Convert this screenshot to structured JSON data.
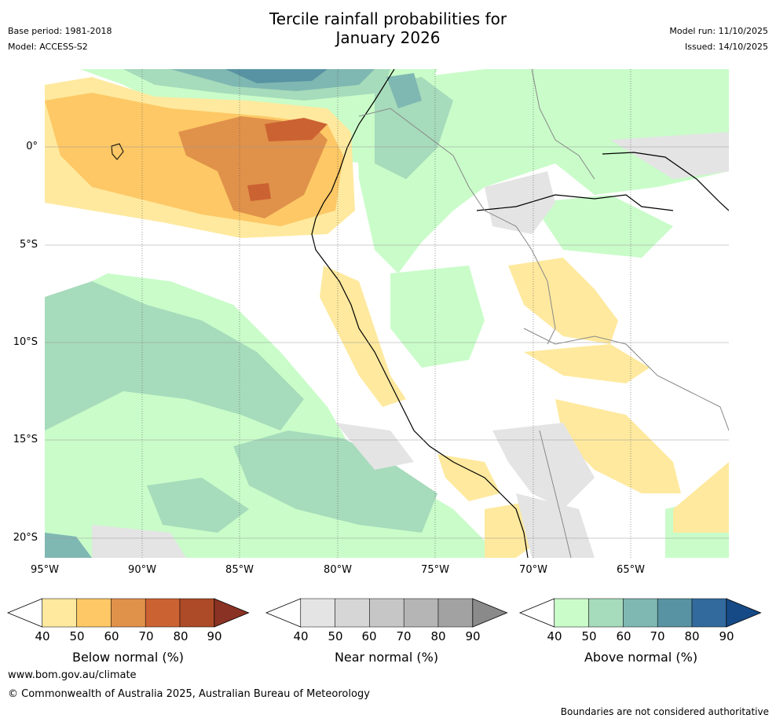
{
  "header": {
    "title_line1": "Tercile rainfall probabilities for",
    "title_line2": "January 2026",
    "base_period": "Base period: 1981-2018",
    "model": "Model: ACCESS-S2",
    "model_run": "Model run: 11/10/2025",
    "issued": "Issued: 14/10/2025"
  },
  "map": {
    "lat_labels": [
      "0°",
      "5°S",
      "10°S",
      "15°S",
      "20°S"
    ],
    "lon_labels": [
      "95°W",
      "90°W",
      "85°W",
      "80°W",
      "75°W",
      "70°W",
      "65°W"
    ]
  },
  "colorbars": [
    {
      "name": "below",
      "label": "Below normal (%)",
      "ticks": [
        "40",
        "50",
        "60",
        "70",
        "80",
        "90"
      ],
      "colors": [
        "#fee99e",
        "#fdc865",
        "#e0914a",
        "#cb6232",
        "#ad4a28",
        "#8a3223"
      ]
    },
    {
      "name": "near",
      "label": "Near normal (%)",
      "ticks": [
        "40",
        "50",
        "60",
        "70",
        "80",
        "90"
      ],
      "colors": [
        "#e4e4e4",
        "#d6d6d6",
        "#c6c6c6",
        "#b5b5b5",
        "#a2a2a2",
        "#8a8a8a"
      ]
    },
    {
      "name": "above",
      "label": "Above normal (%)",
      "ticks": [
        "40",
        "50",
        "60",
        "70",
        "80",
        "90"
      ],
      "colors": [
        "#c9fcc9",
        "#a6dbbb",
        "#7fb7b2",
        "#5893a3",
        "#336a9d",
        "#164a86"
      ]
    }
  ],
  "footer": {
    "website": "www.bom.gov.au/climate",
    "copyright": "© Commonwealth of Australia 2025, Australian Bureau of Meteorology",
    "disclaimer": "Boundaries are not considered authoritative"
  }
}
